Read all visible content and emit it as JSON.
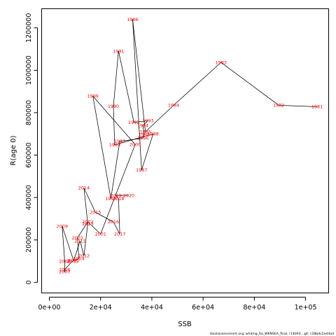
{
  "chart_data": {
    "type": "line",
    "xlabel": "SSB",
    "ylabel": "R(age 0)",
    "xlim": [
      -3000,
      109000
    ],
    "ylim": [
      -50000,
      1290000
    ],
    "x_ticks": [
      {
        "value": 0,
        "label": "0e+00"
      },
      {
        "value": 20000,
        "label": "2e+04"
      },
      {
        "value": 40000,
        "label": "4e+04"
      },
      {
        "value": 60000,
        "label": "6e+04"
      },
      {
        "value": 80000,
        "label": "8e+04"
      },
      {
        "value": 100000,
        "label": "1e+05"
      }
    ],
    "y_ticks": [
      {
        "value": 0,
        "label": "0"
      },
      {
        "value": 200000,
        "label": "200000"
      },
      {
        "value": 400000,
        "label": "400000"
      },
      {
        "value": 600000,
        "label": "600000"
      },
      {
        "value": 800000,
        "label": "800000"
      },
      {
        "value": 1000000,
        "label": "1000000"
      },
      {
        "value": 1200000,
        "label": "1200000"
      }
    ],
    "point_color": "#ff0000",
    "line_color": "#000000",
    "points": [
      {
        "label": "1981",
        "x": 104500,
        "y": 828000
      },
      {
        "label": "1982",
        "x": 89500,
        "y": 835000
      },
      {
        "label": "1983",
        "x": 67000,
        "y": 1037000
      },
      {
        "label": "1984",
        "x": 48500,
        "y": 835000
      },
      {
        "label": "1985",
        "x": 37500,
        "y": 710000
      },
      {
        "label": "1986",
        "x": 32500,
        "y": 1240000
      },
      {
        "label": "1987",
        "x": 36000,
        "y": 530000
      },
      {
        "label": "1988",
        "x": 40500,
        "y": 700000
      },
      {
        "label": "1989",
        "x": 25500,
        "y": 648000
      },
      {
        "label": "1990",
        "x": 25000,
        "y": 830000
      },
      {
        "label": "1991",
        "x": 27000,
        "y": 1090000
      },
      {
        "label": "1992",
        "x": 33000,
        "y": 755000
      },
      {
        "label": "1993",
        "x": 38500,
        "y": 762000
      },
      {
        "label": "1994",
        "x": 36500,
        "y": 740000
      },
      {
        "label": "1995",
        "x": 37000,
        "y": 697000
      },
      {
        "label": "1996",
        "x": 36500,
        "y": 680000
      },
      {
        "label": "1997",
        "x": 27500,
        "y": 665000
      },
      {
        "label": "1998",
        "x": 24000,
        "y": 395000
      },
      {
        "label": "1999",
        "x": 17000,
        "y": 878000
      },
      {
        "label": "2000",
        "x": 33500,
        "y": 650000
      },
      {
        "label": "2001",
        "x": 20000,
        "y": 228000
      },
      {
        "label": "2002",
        "x": 15000,
        "y": 285000
      },
      {
        "label": "2003",
        "x": 11000,
        "y": 210000
      },
      {
        "label": "2004",
        "x": 11500,
        "y": 113000
      },
      {
        "label": "2005",
        "x": 9000,
        "y": 100000
      },
      {
        "label": "2006",
        "x": 6000,
        "y": 60000
      },
      {
        "label": "2007",
        "x": 6000,
        "y": 50000
      },
      {
        "label": "2008",
        "x": 6000,
        "y": 100000
      },
      {
        "label": "2009",
        "x": 5000,
        "y": 265000
      },
      {
        "label": "2010",
        "x": 9500,
        "y": 102000
      },
      {
        "label": "2011",
        "x": 12000,
        "y": 195000
      },
      {
        "label": "2012",
        "x": 13500,
        "y": 125000
      },
      {
        "label": "2013",
        "x": 15000,
        "y": 275000
      },
      {
        "label": "2014",
        "x": 13500,
        "y": 445000
      },
      {
        "label": "2015",
        "x": 18000,
        "y": 330000
      },
      {
        "label": "2016",
        "x": 25000,
        "y": 285000
      },
      {
        "label": "2017",
        "x": 27500,
        "y": 228000
      },
      {
        "label": "2018",
        "x": 27000,
        "y": 395000
      },
      {
        "label": "2019",
        "x": 26000,
        "y": 410000
      },
      {
        "label": "2020",
        "x": 31000,
        "y": 410000
      }
    ],
    "path_order": [
      "1981",
      "1982",
      "1983",
      "1984",
      "1985",
      "1986",
      "1987",
      "1988",
      "1989",
      "1990",
      "1991",
      "1992",
      "1993",
      "1994",
      "1995",
      "1996",
      "1997",
      "1998",
      "1999",
      "2000",
      "2001",
      "2002",
      "2003",
      "2004",
      "2005",
      "2006",
      "2007",
      "2008",
      "2009",
      "2010",
      "2011",
      "2012",
      "2013",
      "2014",
      "2015",
      "2016",
      "2017",
      "2018",
      "2019",
      "2020"
    ]
  },
  "footer_text": "stockassessment.org, whiting_6a_WKNSEA_final, r14093 , git: c28bdc2a44ad"
}
